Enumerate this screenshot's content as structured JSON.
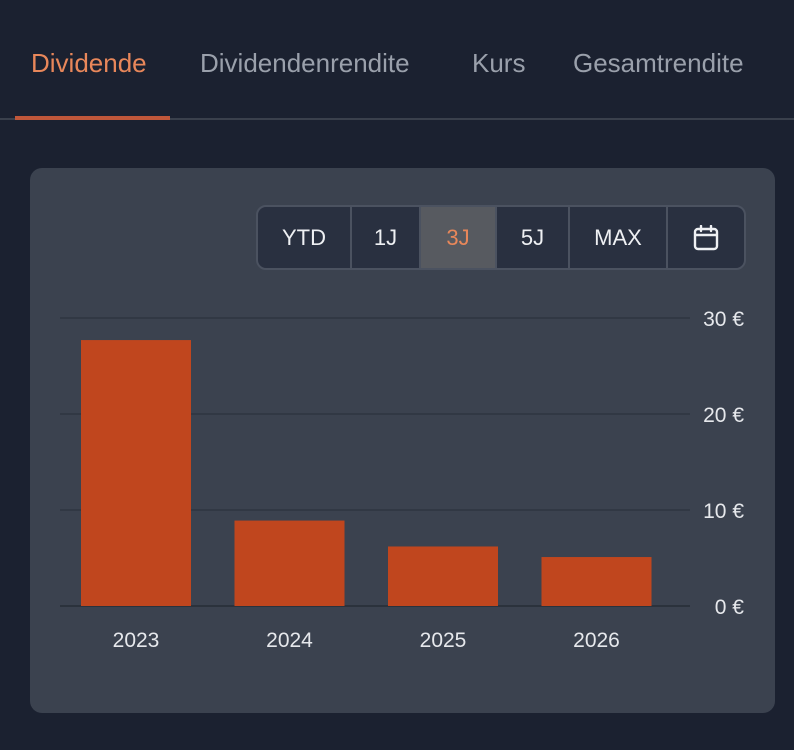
{
  "tabs": [
    {
      "label": "Dividende",
      "active": true
    },
    {
      "label": "Dividendenrendite",
      "active": false
    },
    {
      "label": "Kurs",
      "active": false
    },
    {
      "label": "Gesamtrendite",
      "active": false
    }
  ],
  "range": {
    "options": [
      "YTD",
      "1J",
      "3J",
      "5J",
      "MAX"
    ],
    "selected": "3J",
    "calendar_icon": "calendar-icon"
  },
  "colors": {
    "background": "#1b2130",
    "card": "#3b424f",
    "accent": "#e8875a",
    "bar": "#c0461e"
  },
  "chart_data": {
    "type": "bar",
    "categories": [
      "2023",
      "2024",
      "2025",
      "2026"
    ],
    "values": [
      27.7,
      8.9,
      6.2,
      5.1
    ],
    "y_ticks": [
      "0 €",
      "10 €",
      "20 €",
      "30 €"
    ],
    "y_tick_values": [
      0,
      10,
      20,
      30
    ],
    "ylim": [
      0,
      30
    ],
    "unit": "€",
    "grid": true,
    "y_axis_position": "right"
  }
}
